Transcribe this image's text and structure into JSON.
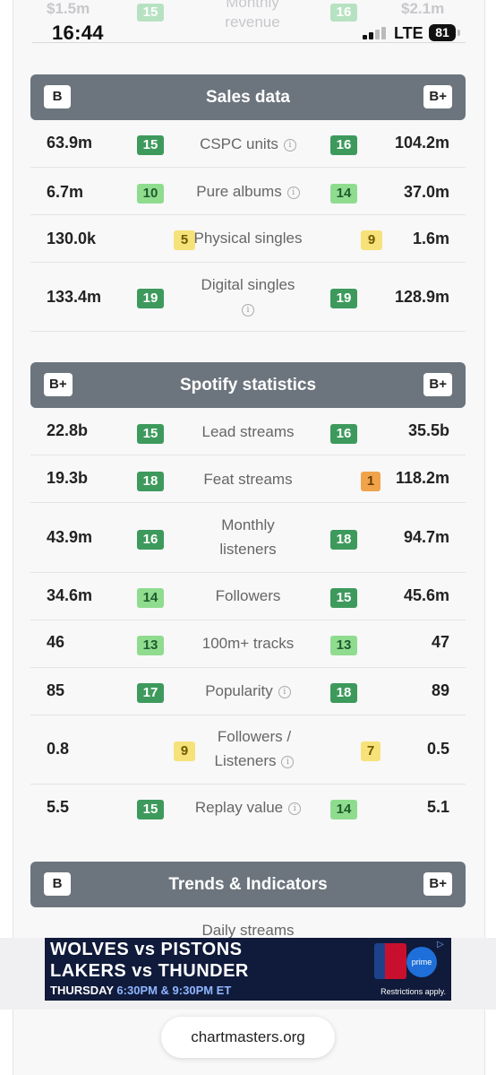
{
  "status_bar": {
    "time": "16:44",
    "network": "LTE",
    "battery": "81"
  },
  "ghost_row": {
    "left_value": "$1.5m",
    "left_rank": "15",
    "label": "Monthly revenue",
    "right_rank": "16",
    "right_value": "$2.1m"
  },
  "sections": {
    "sales": {
      "title": "Sales data",
      "left_grade": "B",
      "right_grade": "B+",
      "rows": [
        {
          "label": "CSPC units",
          "left": "63.9m",
          "left_rank": "15",
          "right_rank": "16",
          "right": "104.2m"
        },
        {
          "label": "Pure albums",
          "left": "6.7m",
          "left_rank": "10",
          "right_rank": "14",
          "right": "37.0m"
        },
        {
          "label": "Physical singles",
          "left": "130.0k",
          "left_rank": "5",
          "right_rank": "9",
          "right": "1.6m"
        },
        {
          "label": "Digital singles",
          "left": "133.4m",
          "left_rank": "19",
          "right_rank": "19",
          "right": "128.9m"
        }
      ]
    },
    "spotify": {
      "title": "Spotify statistics",
      "left_grade": "B+",
      "right_grade": "B+",
      "rows": [
        {
          "label": "Lead streams",
          "left": "22.8b",
          "left_rank": "15",
          "right_rank": "16",
          "right": "35.5b"
        },
        {
          "label": "Feat streams",
          "left": "19.3b",
          "left_rank": "18",
          "right_rank": "1",
          "right": "118.2m"
        },
        {
          "label": "Monthly listeners",
          "left": "43.9m",
          "left_rank": "16",
          "right_rank": "18",
          "right": "94.7m"
        },
        {
          "label": "Followers",
          "left": "34.6m",
          "left_rank": "14",
          "right_rank": "15",
          "right": "45.6m"
        },
        {
          "label": "100m+ tracks",
          "left": "46",
          "left_rank": "13",
          "right_rank": "13",
          "right": "47"
        },
        {
          "label": "Popularity",
          "left": "85",
          "left_rank": "17",
          "right_rank": "18",
          "right": "89"
        },
        {
          "label": "Followers / Listeners",
          "left": "0.8",
          "left_rank": "9",
          "right_rank": "7",
          "right": "0.5"
        },
        {
          "label": "Replay value",
          "left": "5.5",
          "left_rank": "15",
          "right_rank": "14",
          "right": "5.1"
        }
      ]
    },
    "trends": {
      "title": "Trends & Indicators",
      "left_grade": "B",
      "right_grade": "B+",
      "next_label": "Daily streams"
    }
  },
  "ad": {
    "line1": "WOLVES vs PISTONS",
    "line2": "LAKERS vs THUNDER",
    "line3_day": "THURSDAY",
    "line3_time": "6:30PM & 9:30PM ET",
    "prime": "prime",
    "restrictions": "Restrictions apply."
  },
  "url_bar": {
    "domain": "chartmasters.org"
  },
  "colors": {
    "header": "#6c757d",
    "rank_dark_green": "#3d9a5c",
    "rank_light_green": "#8fdc8f",
    "rank_yellow": "#f7e27a",
    "rank_orange": "#f0a34a"
  }
}
